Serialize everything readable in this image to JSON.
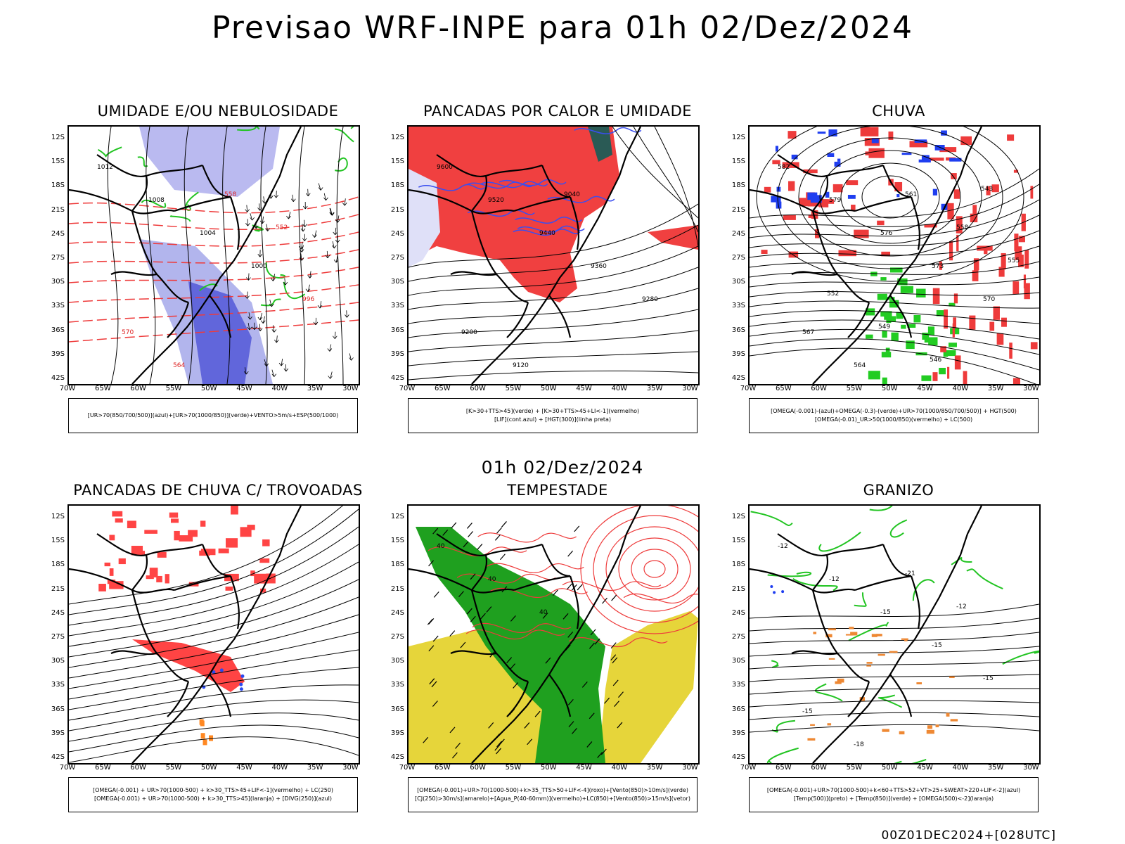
{
  "title": "Previsao WRF-INPE  para 01h 02/Dez/2024",
  "mid_title": "01h 02/Dez/2024",
  "timestamp": "00Z01DEC2024+[028UTC]",
  "lat_ticks": [
    "12S",
    "15S",
    "18S",
    "21S",
    "24S",
    "27S",
    "30S",
    "33S",
    "36S",
    "39S",
    "42S"
  ],
  "lon_ticks": [
    "70W",
    "65W",
    "60W",
    "55W",
    "50W",
    "45W",
    "40W",
    "35W",
    "30W"
  ],
  "panels": [
    {
      "title": "UMIDADE E/OU NEBULOSIDADE",
      "legend": [
        "[UR>70(850/700/500)](azul)+[UR>70(1000/850)](verde)+VENTO>5m/s+ESP(500/1000)"
      ],
      "contour_labels": [
        "1012",
        "1008",
        "1004",
        "1000",
        "996",
        "570",
        "564",
        "558",
        "552"
      ]
    },
    {
      "title": "PANCADAS POR CALOR E UMIDADE",
      "legend": [
        "[K>30+TTS>45](verde) + [K>30+TTS>45+LI<-1](vermelho)",
        "[LIF](cont.azul) + [HGT(300)](linha preta)"
      ],
      "contour_labels": [
        "9600",
        "9520",
        "9440",
        "9360",
        "9280",
        "9200",
        "9120",
        "9040"
      ]
    },
    {
      "title": "CHUVA",
      "legend": [
        "[OMEGA(-0.001)-(azul)+OMEGA(-0.3)-(verde)+UR>70(1000/850/700/500)] + HGT(500)",
        "[OMEGA(-0.01)_UR>50(1000/850)(vermelho) + LC(500)"
      ],
      "contour_labels": [
        "582",
        "579",
        "576",
        "573",
        "570",
        "567",
        "564",
        "561",
        "558",
        "555",
        "552",
        "549",
        "546",
        "543"
      ]
    },
    {
      "title": "PANCADAS DE CHUVA C/ TROVOADAS",
      "legend": [
        "[OMEGA(-0.001) + UR>70(1000-500) + k>30_TTS>45+LIF<-1](vermelho) + LC(250)",
        "[OMEGA(-0.001) + UR>70(1000-500) + k>30_TTS>45](laranja) + [DIVG(250)](azul)"
      ],
      "contour_labels": []
    },
    {
      "title": "TEMPESTADE",
      "legend": [
        "[OMEGA(-0.001)+UR>70(1000-500)+k>35_TTS>50+LIF<-4](roxo)+[Vento(850)>10m/s](verde)",
        "[CJ(250)>30m/s](amarelo)+[Agua_P(40-60mm)](vermelho)+LC(850)+[Vento(850)>15m/s](vetor)"
      ],
      "contour_labels": [
        "40",
        "40",
        "40"
      ]
    },
    {
      "title": "GRANIZO",
      "legend": [
        "[OMEGA(-0.001)+UR>70(1000-500)+k<60+TTS>52+VT>25+SWEAT>220+LIF<-2](azul)",
        "[Temp(500)](preto) + [Temp(850)](verde) + [OMEGA(500)<-2](laranja)"
      ],
      "contour_labels": [
        "-12",
        "-12",
        "-15",
        "-15",
        "-15",
        "-15",
        "-18",
        "-21",
        "-12"
      ]
    }
  ]
}
